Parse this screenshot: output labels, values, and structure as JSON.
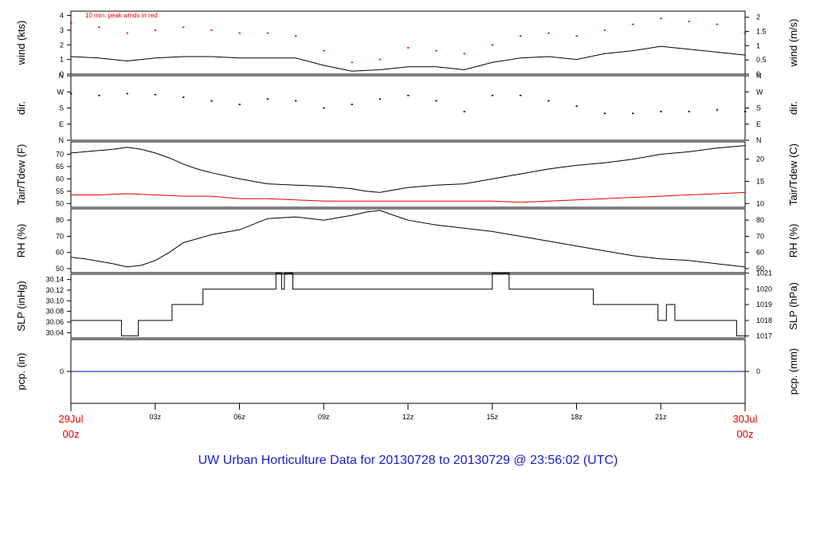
{
  "chart_data": {
    "type": "line",
    "title": "UW Urban Horticulture Data for 20130728  to  20130729 @ 23:56:02  (UTC)",
    "x_ticks": [
      "03z",
      "06z",
      "09z",
      "12z",
      "15z",
      "18z",
      "21z"
    ],
    "x_start": {
      "day": "29Jul",
      "hour": "00z"
    },
    "x_end": {
      "day": "30Jul",
      "hour": "00z"
    },
    "x_range_hours": [
      0,
      24
    ],
    "colors": {
      "primary": "#000000",
      "peak": "#e00000",
      "precip": "#0000cc",
      "date": "#e00000",
      "title": "#1a1acc"
    },
    "panels": [
      {
        "id": "wind",
        "left_label": "wind (kts)",
        "right_label": "wind (m/s)",
        "left_ticks": [
          "0",
          "1",
          "2",
          "3",
          "4"
        ],
        "left_range": [
          0,
          4.3
        ],
        "right_ticks": [
          "0",
          "0.5",
          "1",
          "1.5",
          "2"
        ],
        "annotation": "10 min. peak winds in red",
        "series": [
          {
            "name": "wind speed",
            "color": "#000000",
            "x": [
              0,
              1,
              2,
              3,
              4,
              5,
              6,
              7,
              8,
              9,
              10,
              11,
              12,
              13,
              14,
              15,
              16,
              17,
              18,
              19,
              20,
              21,
              22,
              23,
              24
            ],
            "y": [
              1.2,
              1.1,
              0.9,
              1.1,
              1.2,
              1.2,
              1.1,
              1.1,
              1.1,
              0.6,
              0.2,
              0.3,
              0.5,
              0.5,
              0.3,
              0.8,
              1.1,
              1.2,
              1.0,
              1.4,
              1.6,
              1.9,
              1.7,
              1.5,
              1.3
            ]
          },
          {
            "name": "peak",
            "color": "#e00000",
            "x": [
              0,
              1,
              2,
              3,
              4,
              5,
              6,
              7,
              8,
              9,
              10,
              11,
              12,
              13,
              14,
              15,
              16,
              17,
              18,
              19,
              20,
              21,
              22,
              23,
              24
            ],
            "y": [
              3.5,
              3.2,
              2.8,
              3.0,
              3.2,
              3.0,
              2.8,
              2.8,
              2.6,
              1.6,
              0.8,
              1.0,
              1.8,
              1.6,
              1.4,
              2.0,
              2.6,
              2.8,
              2.6,
              3.0,
              3.4,
              3.8,
              3.6,
              3.4,
              2.8
            ]
          }
        ]
      },
      {
        "id": "dir",
        "left_label": "dir.",
        "right_label": "dir.",
        "left_ticks": [
          "N",
          "E",
          "S",
          "W",
          "N"
        ],
        "left_range": [
          0,
          360
        ],
        "right_ticks": [
          "N",
          "E",
          "S",
          "W",
          "N"
        ],
        "series": [
          {
            "name": "direction",
            "color": "#000000",
            "x": [
              0,
              1,
              2,
              3,
              4,
              5,
              6,
              7,
              8,
              9,
              10,
              11,
              12,
              13,
              14,
              15,
              16,
              17,
              18,
              19,
              20,
              21,
              22,
              23,
              24
            ],
            "y": [
              260,
              250,
              260,
              255,
              240,
              220,
              200,
              230,
              220,
              180,
              200,
              230,
              250,
              220,
              160,
              250,
              250,
              220,
              190,
              150,
              150,
              160,
              160,
              170,
              160
            ]
          }
        ]
      },
      {
        "id": "temp",
        "left_label": "Tair/Tdew (F)",
        "right_label": "Tair/Tdew (C)",
        "left_ticks": [
          "50",
          "55",
          "60",
          "65",
          "70"
        ],
        "left_range": [
          48.5,
          75
        ],
        "right_ticks": [
          "10",
          "15",
          "20"
        ],
        "right_values_f": [
          50,
          59,
          68
        ],
        "series": [
          {
            "name": "Tair",
            "color": "#000000",
            "x": [
              0,
              0.5,
              1,
              1.5,
              2,
              2.5,
              3,
              3.5,
              4,
              4.5,
              5,
              6,
              7,
              8,
              9,
              10,
              10.5,
              11,
              11.5,
              12,
              13,
              14,
              15,
              16,
              17,
              18,
              19,
              20,
              21,
              22,
              23,
              24
            ],
            "y": [
              70.5,
              71,
              71.5,
              72,
              72.8,
              72,
              70.5,
              68.5,
              66,
              64,
              62.5,
              60,
              58,
              57.5,
              57,
              56,
              55,
              54.5,
              55.5,
              56.5,
              57.5,
              58,
              60,
              62,
              64,
              65.5,
              66.5,
              68,
              70,
              71,
              72.5,
              73.5
            ]
          },
          {
            "name": "Tdew",
            "color": "#e00000",
            "x": [
              0,
              1,
              2,
              3,
              4,
              5,
              6,
              7,
              8,
              9,
              10,
              11,
              12,
              13,
              14,
              15,
              16,
              17,
              18,
              19,
              20,
              21,
              22,
              23,
              24
            ],
            "y": [
              53.5,
              53.5,
              54,
              53.5,
              53,
              53,
              52,
              52,
              51.5,
              51,
              51,
              51,
              51,
              51,
              51,
              51,
              50.5,
              51,
              51.5,
              52,
              52.5,
              53,
              53.5,
              54,
              54.5
            ]
          }
        ]
      },
      {
        "id": "rh",
        "left_label": "RH (%)",
        "right_label": "RH (%)",
        "left_ticks": [
          "50",
          "60",
          "70",
          "80"
        ],
        "left_range": [
          47.5,
          87
        ],
        "right_ticks": [
          "50",
          "60",
          "70",
          "80"
        ],
        "series": [
          {
            "name": "RH",
            "color": "#000000",
            "x": [
              0,
              0.5,
              1,
              1.5,
              2,
              2.5,
              3,
              3.5,
              4,
              5,
              6,
              7,
              8,
              9,
              10,
              10.5,
              11,
              11.5,
              12,
              13,
              14,
              15,
              16,
              17,
              18,
              19,
              20,
              21,
              22,
              23,
              24
            ],
            "y": [
              57,
              56,
              54.5,
              53,
              51,
              52,
              55,
              60,
              66,
              71,
              74,
              81,
              82,
              80,
              83,
              85,
              86,
              83,
              80,
              77,
              75,
              73,
              70,
              67,
              64,
              61,
              58,
              56,
              55,
              53,
              51
            ]
          }
        ]
      },
      {
        "id": "slp",
        "left_label": "SLP (inHg)",
        "right_label": "SLP (hPa)",
        "left_ticks": [
          "30.04",
          "30.06",
          "30.08",
          "30.10",
          "30.12",
          "30.14"
        ],
        "left_range": [
          30.03,
          30.15
        ],
        "right_ticks": [
          "1017",
          "1018",
          "1019",
          "1020",
          "1021"
        ],
        "right_values_in": [
          30.034,
          30.063,
          30.093,
          30.122,
          30.152
        ],
        "series": [
          {
            "name": "SLP",
            "color": "#000000",
            "x": [
              0,
              1.8,
              1.8,
              2.4,
              2.4,
              3.6,
              3.6,
              4.7,
              4.7,
              7.3,
              7.3,
              7.5,
              7.5,
              7.6,
              7.6,
              7.9,
              7.9,
              15.0,
              15.0,
              15.6,
              15.6,
              18.6,
              18.6,
              20.9,
              20.9,
              21.2,
              21.2,
              21.5,
              21.5,
              23.7,
              23.7,
              24
            ],
            "y": [
              30.063,
              30.063,
              30.034,
              30.034,
              30.063,
              30.063,
              30.093,
              30.093,
              30.122,
              30.122,
              30.152,
              30.152,
              30.122,
              30.122,
              30.152,
              30.152,
              30.122,
              30.122,
              30.152,
              30.152,
              30.122,
              30.122,
              30.093,
              30.093,
              30.063,
              30.063,
              30.093,
              30.093,
              30.063,
              30.063,
              30.034,
              30.034
            ]
          }
        ]
      },
      {
        "id": "pcp",
        "left_label": "pcp. (in)",
        "right_label": "pcp. (mm)",
        "left_ticks": [
          "0"
        ],
        "left_range": [
          -1,
          1
        ],
        "right_ticks": [
          "0"
        ],
        "series": [
          {
            "name": "precip",
            "color": "#0000cc",
            "x": [
              0,
              24
            ],
            "y": [
              0,
              0
            ]
          }
        ]
      }
    ]
  }
}
